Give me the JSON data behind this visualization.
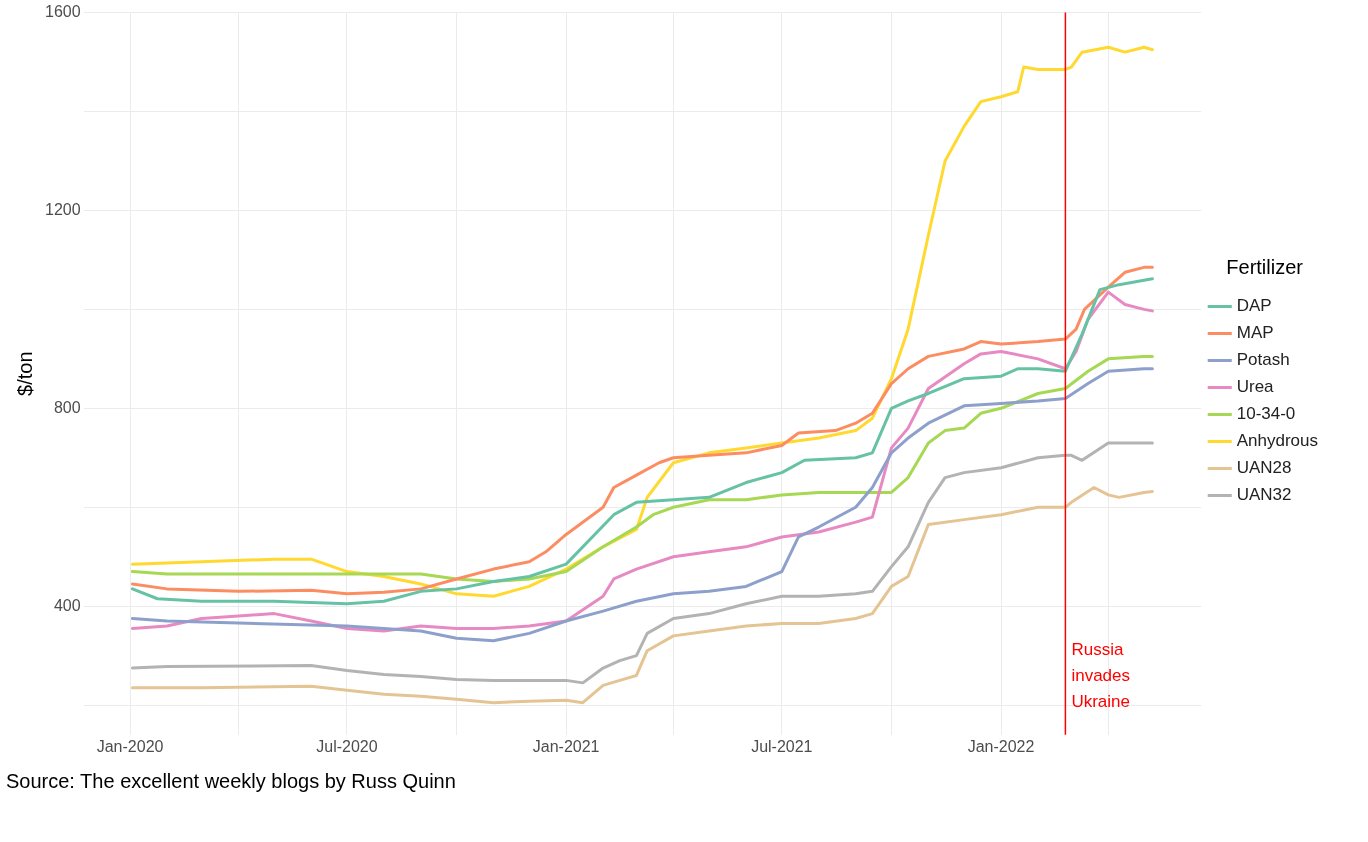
{
  "chart_data": {
    "type": "line",
    "ylabel": "$/ton",
    "legend_title": "Fertilizer",
    "legend": "right",
    "grid": true,
    "marker": "none",
    "line_style": "solid",
    "xlim": [
      "2019-11-23",
      "2022-06-18"
    ],
    "xticks": [
      {
        "value": "2020-01-01",
        "label": "Jan-2020"
      },
      {
        "value": "2020-04-01",
        "label": null
      },
      {
        "value": "2020-07-01",
        "label": "Jul-2020"
      },
      {
        "value": "2020-10-01",
        "label": null
      },
      {
        "value": "2021-01-01",
        "label": "Jan-2021"
      },
      {
        "value": "2021-04-01",
        "label": null
      },
      {
        "value": "2021-07-01",
        "label": "Jul-2021"
      },
      {
        "value": "2021-10-01",
        "label": null
      },
      {
        "value": "2022-01-01",
        "label": "Jan-2022"
      },
      {
        "value": "2022-04-01",
        "label": null
      }
    ],
    "ylim": [
      140,
      1600
    ],
    "yticks": [
      {
        "value": 200,
        "label": null
      },
      400,
      {
        "value": 600,
        "label": null
      },
      800,
      {
        "value": 1000,
        "label": null
      },
      1200,
      {
        "value": 1400,
        "label": null
      },
      1600
    ],
    "ref_lines": [
      {
        "axis": "x",
        "value": "2022-02-24",
        "label": "Russia invades Ukraine",
        "color": "#ff0000"
      }
    ],
    "annotations": [
      "Source: The excellent weekly blogs by Russ Quinn"
    ],
    "series": [
      {
        "name": "DAP",
        "color": "#66c2a5",
        "x": [
          "2020-01-03",
          "2020-01-24",
          "2020-03-01",
          "2020-05-01",
          "2020-07-01",
          "2020-08-01",
          "2020-09-01",
          "2020-10-01",
          "2020-11-01",
          "2020-12-01",
          "2021-01-01",
          "2021-02-10",
          "2021-03-01",
          "2021-04-01",
          "2021-05-01",
          "2021-06-01",
          "2021-07-01",
          "2021-07-20",
          "2021-09-01",
          "2021-09-15",
          "2021-10-01",
          "2021-10-15",
          "2021-11-01",
          "2021-12-01",
          "2022-01-01",
          "2022-01-15",
          "2022-02-01",
          "2022-02-24",
          "2022-03-10",
          "2022-03-25",
          "2022-04-10",
          "2022-05-08"
        ],
        "values": [
          435,
          415,
          410,
          410,
          405,
          410,
          430,
          435,
          450,
          460,
          485,
          585,
          610,
          615,
          620,
          650,
          670,
          695,
          700,
          710,
          800,
          815,
          830,
          860,
          865,
          880,
          880,
          875,
          950,
          1040,
          1050,
          1062
        ]
      },
      {
        "name": "MAP",
        "color": "#fc8d62",
        "x": [
          "2020-01-03",
          "2020-02-01",
          "2020-04-01",
          "2020-06-01",
          "2020-07-01",
          "2020-08-01",
          "2020-09-01",
          "2020-10-01",
          "2020-11-01",
          "2020-12-01",
          "2020-12-15",
          "2021-01-01",
          "2021-02-01",
          "2021-02-10",
          "2021-03-01",
          "2021-03-20",
          "2021-04-01",
          "2021-05-01",
          "2021-06-01",
          "2021-07-01",
          "2021-07-15",
          "2021-08-15",
          "2021-09-01",
          "2021-09-15",
          "2021-10-01",
          "2021-10-15",
          "2021-11-01",
          "2021-12-01",
          "2021-12-15",
          "2022-01-01",
          "2022-02-01",
          "2022-02-24",
          "2022-03-05",
          "2022-03-12",
          "2022-04-01",
          "2022-04-15",
          "2022-05-01",
          "2022-05-08"
        ],
        "values": [
          445,
          435,
          430,
          432,
          425,
          428,
          435,
          455,
          475,
          490,
          510,
          545,
          600,
          640,
          665,
          690,
          700,
          705,
          710,
          725,
          750,
          755,
          770,
          790,
          850,
          880,
          905,
          920,
          935,
          930,
          935,
          940,
          960,
          1000,
          1045,
          1075,
          1085,
          1085
        ]
      },
      {
        "name": "Potash",
        "color": "#8da0cb",
        "x": [
          "2020-01-03",
          "2020-02-01",
          "2020-07-01",
          "2020-08-01",
          "2020-09-01",
          "2020-10-01",
          "2020-11-01",
          "2020-12-01",
          "2021-01-01",
          "2021-02-01",
          "2021-03-01",
          "2021-04-01",
          "2021-05-01",
          "2021-06-01",
          "2021-07-01",
          "2021-07-15",
          "2021-08-01",
          "2021-09-01",
          "2021-09-15",
          "2021-10-01",
          "2021-10-15",
          "2021-11-01",
          "2021-12-01",
          "2022-01-01",
          "2022-02-01",
          "2022-02-24",
          "2022-03-15",
          "2022-04-01",
          "2022-05-01",
          "2022-05-08"
        ],
        "values": [
          375,
          370,
          360,
          355,
          350,
          335,
          330,
          345,
          370,
          390,
          410,
          425,
          430,
          440,
          470,
          540,
          560,
          600,
          640,
          710,
          740,
          770,
          805,
          810,
          815,
          820,
          850,
          875,
          880,
          880
        ]
      },
      {
        "name": "Urea",
        "color": "#e78ac3",
        "x": [
          "2020-01-03",
          "2020-02-01",
          "2020-03-01",
          "2020-04-01",
          "2020-05-01",
          "2020-06-01",
          "2020-07-01",
          "2020-08-01",
          "2020-09-01",
          "2020-10-01",
          "2020-11-01",
          "2020-12-01",
          "2021-01-01",
          "2021-02-01",
          "2021-02-10",
          "2021-03-01",
          "2021-04-01",
          "2021-05-01",
          "2021-06-01",
          "2021-07-01",
          "2021-08-01",
          "2021-09-01",
          "2021-09-15",
          "2021-10-01",
          "2021-10-15",
          "2021-11-01",
          "2021-12-01",
          "2021-12-15",
          "2022-01-01",
          "2022-02-01",
          "2022-02-24",
          "2022-03-05",
          "2022-03-15",
          "2022-04-01",
          "2022-04-15",
          "2022-05-01",
          "2022-05-08"
        ],
        "values": [
          355,
          360,
          375,
          380,
          385,
          370,
          355,
          350,
          360,
          355,
          355,
          360,
          370,
          420,
          455,
          475,
          500,
          510,
          520,
          540,
          550,
          570,
          580,
          720,
          760,
          840,
          890,
          910,
          915,
          900,
          880,
          915,
          980,
          1035,
          1010,
          1000,
          997
        ]
      },
      {
        "name": "10-34-0",
        "color": "#a6d854",
        "x": [
          "2020-01-03",
          "2020-02-01",
          "2020-09-01",
          "2020-10-01",
          "2020-11-01",
          "2020-12-01",
          "2021-01-01",
          "2021-02-01",
          "2021-03-01",
          "2021-03-15",
          "2021-04-01",
          "2021-05-01",
          "2021-06-01",
          "2021-07-01",
          "2021-08-01",
          "2021-10-01",
          "2021-10-15",
          "2021-11-01",
          "2021-11-15",
          "2021-12-01",
          "2021-12-15",
          "2022-01-01",
          "2022-02-01",
          "2022-02-24",
          "2022-03-15",
          "2022-04-01",
          "2022-05-01",
          "2022-05-08"
        ],
        "values": [
          470,
          465,
          465,
          455,
          450,
          455,
          470,
          520,
          560,
          585,
          600,
          615,
          615,
          625,
          630,
          630,
          660,
          730,
          755,
          760,
          790,
          800,
          830,
          840,
          875,
          900,
          905,
          905
        ]
      },
      {
        "name": "Anhydrous",
        "color": "#ffd92f",
        "x": [
          "2020-01-03",
          "2020-03-01",
          "2020-05-01",
          "2020-06-01",
          "2020-07-01",
          "2020-08-01",
          "2020-09-01",
          "2020-10-01",
          "2020-11-01",
          "2020-12-01",
          "2021-01-01",
          "2021-02-01",
          "2021-03-01",
          "2021-03-10",
          "2021-04-01",
          "2021-05-01",
          "2021-06-01",
          "2021-07-01",
          "2021-08-01",
          "2021-09-01",
          "2021-09-15",
          "2021-10-01",
          "2021-10-15",
          "2021-11-01",
          "2021-11-15",
          "2021-12-01",
          "2021-12-15",
          "2022-01-01",
          "2022-01-15",
          "2022-01-20",
          "2022-02-01",
          "2022-02-24",
          "2022-03-01",
          "2022-03-10",
          "2022-04-01",
          "2022-04-15",
          "2022-05-01",
          "2022-05-08"
        ],
        "values": [
          485,
          490,
          495,
          495,
          470,
          460,
          445,
          425,
          420,
          440,
          475,
          520,
          555,
          620,
          690,
          710,
          720,
          730,
          740,
          755,
          780,
          860,
          960,
          1150,
          1300,
          1370,
          1420,
          1430,
          1440,
          1490,
          1485,
          1485,
          1490,
          1520,
          1530,
          1520,
          1530,
          1525
        ]
      },
      {
        "name": "UAN28",
        "color": "#e5c494",
        "x": [
          "2020-01-03",
          "2020-03-01",
          "2020-06-01",
          "2020-07-01",
          "2020-08-01",
          "2020-09-01",
          "2020-10-01",
          "2020-11-01",
          "2020-12-01",
          "2021-01-01",
          "2021-01-15",
          "2021-02-01",
          "2021-02-15",
          "2021-03-01",
          "2021-03-10",
          "2021-04-01",
          "2021-05-01",
          "2021-06-01",
          "2021-07-01",
          "2021-08-01",
          "2021-09-01",
          "2021-09-15",
          "2021-10-01",
          "2021-10-15",
          "2021-11-01",
          "2021-12-01",
          "2022-01-01",
          "2022-02-01",
          "2022-02-24",
          "2022-03-01",
          "2022-03-20",
          "2022-04-01",
          "2022-04-10",
          "2022-05-01",
          "2022-05-08"
        ],
        "values": [
          235,
          235,
          238,
          230,
          222,
          218,
          212,
          205,
          208,
          210,
          205,
          240,
          250,
          260,
          310,
          340,
          350,
          360,
          365,
          365,
          375,
          385,
          440,
          460,
          565,
          575,
          585,
          600,
          600,
          610,
          640,
          625,
          620,
          630,
          632
        ]
      },
      {
        "name": "UAN32",
        "color": "#b3b3b3",
        "x": [
          "2020-01-03",
          "2020-02-01",
          "2020-06-01",
          "2020-07-01",
          "2020-08-01",
          "2020-09-01",
          "2020-10-01",
          "2020-11-01",
          "2021-01-01",
          "2021-01-15",
          "2021-02-01",
          "2021-02-15",
          "2021-03-01",
          "2021-03-10",
          "2021-04-01",
          "2021-05-01",
          "2021-06-01",
          "2021-07-01",
          "2021-08-01",
          "2021-09-01",
          "2021-09-15",
          "2021-10-01",
          "2021-10-15",
          "2021-11-01",
          "2021-11-15",
          "2021-12-01",
          "2022-01-01",
          "2022-02-01",
          "2022-02-24",
          "2022-03-01",
          "2022-03-10",
          "2022-04-01",
          "2022-05-01",
          "2022-05-08"
        ],
        "values": [
          275,
          278,
          280,
          270,
          262,
          258,
          252,
          250,
          250,
          245,
          275,
          290,
          300,
          345,
          375,
          385,
          405,
          420,
          420,
          425,
          430,
          480,
          520,
          610,
          660,
          670,
          680,
          700,
          705,
          705,
          695,
          730,
          730,
          730
        ]
      }
    ]
  }
}
